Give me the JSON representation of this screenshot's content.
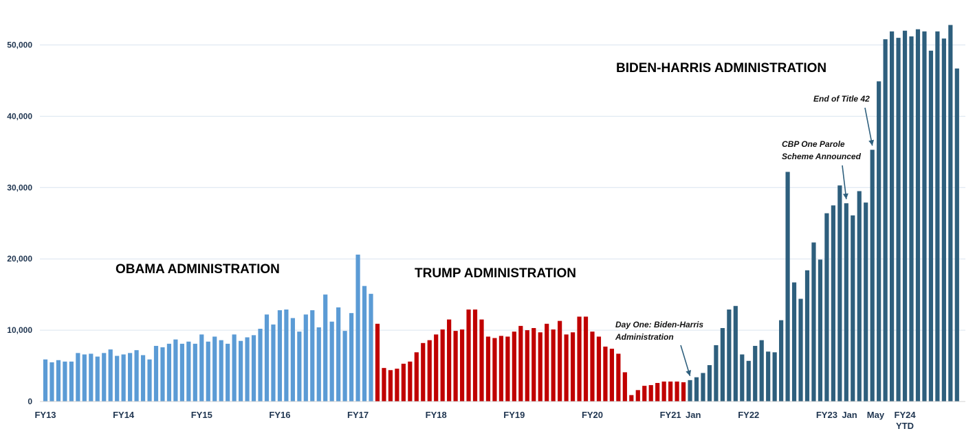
{
  "chart_data": {
    "type": "bar",
    "title": "",
    "xlabel": "",
    "ylabel": "",
    "ylim": [
      0,
      54000
    ],
    "grid": true,
    "colors": {
      "obama": "#5b9bd5",
      "trump": "#c00000",
      "biden": "#2e5f7d",
      "biden_title": "#1f3864",
      "grid": "#d9e4ef",
      "axis_text": "#1f3550"
    },
    "y_ticks": [
      {
        "value": 0,
        "label": "0"
      },
      {
        "value": 10000,
        "label": "10,000"
      },
      {
        "value": 20000,
        "label": "20,000"
      },
      {
        "value": 30000,
        "label": "30,000"
      },
      {
        "value": 40000,
        "label": "40,000"
      },
      {
        "value": 50000,
        "label": "50,000"
      }
    ],
    "x_ticks": [
      {
        "bar": 0,
        "label": "FY13"
      },
      {
        "bar": 12,
        "label": "FY14"
      },
      {
        "bar": 24,
        "label": "FY15"
      },
      {
        "bar": 36,
        "label": "FY16"
      },
      {
        "bar": 48,
        "label": "FY17"
      },
      {
        "bar": 60,
        "label": "FY18"
      },
      {
        "bar": 72,
        "label": "FY19"
      },
      {
        "bar": 84,
        "label": "FY20"
      },
      {
        "bar": 96,
        "label": "FY21"
      },
      {
        "bar": 99.5,
        "label": "Jan"
      },
      {
        "bar": 108,
        "label": "FY22"
      },
      {
        "bar": 120,
        "label": "FY23"
      },
      {
        "bar": 123.5,
        "label": "Jan"
      },
      {
        "bar": 127.5,
        "label": "May"
      },
      {
        "bar": 132,
        "label": "FY24"
      },
      {
        "bar": 132,
        "label": "YTD",
        "line": 2
      }
    ],
    "series": [
      {
        "name": "OBAMA ADMINISTRATION",
        "start": 0,
        "color": "#5b9bd5",
        "values": [
          5900,
          5500,
          5800,
          5600,
          5600,
          6800,
          6600,
          6700,
          6300,
          6800,
          7300,
          6400,
          6600,
          6800,
          7200,
          6500,
          5900,
          7800,
          7600,
          8100,
          8700,
          8100,
          8400,
          8100,
          9400,
          8400,
          9100,
          8600,
          8100,
          9400,
          8500,
          9000,
          9300,
          10200,
          12200,
          10800,
          12800,
          12900,
          11700,
          9800,
          12200,
          12800,
          10400,
          15000,
          11200,
          13200,
          9900,
          12400,
          20600,
          16200,
          15100
        ]
      },
      {
        "name": "TRUMP ADMINISTRATION",
        "start": 51,
        "color": "#c00000",
        "values": [
          10900,
          4700,
          4400,
          4600,
          5300,
          5600,
          6900,
          8200,
          8600,
          9400,
          10100,
          11500,
          9900,
          10100,
          12900,
          12900,
          11500,
          9100,
          8900,
          9200,
          9100,
          9800,
          10600,
          10000,
          10300,
          9700,
          10900,
          10100,
          11300,
          9400,
          9700,
          11900,
          11900,
          9800,
          9100,
          7700,
          7400,
          6700,
          4100,
          900,
          1600,
          2200,
          2300,
          2600,
          2800,
          2800,
          2800,
          2700
        ]
      },
      {
        "name": "BIDEN-HARRIS ADMINISTRATION",
        "start": 99,
        "color": "#2e5f7d",
        "values": [
          3000,
          3400,
          4000,
          5100,
          7900,
          10300,
          12900,
          13400,
          6600,
          5700,
          7800,
          8600,
          7000,
          6900,
          11400,
          32200,
          16700,
          14400,
          18400,
          22300,
          19900,
          26400,
          27500,
          30300,
          27800,
          26100,
          29500,
          27900,
          35300,
          44900,
          50800,
          51900,
          51000,
          52000,
          51200,
          52200,
          51900,
          49200,
          51900,
          50900,
          52800,
          46700
        ]
      }
    ],
    "admin_labels": [
      {
        "text": "OBAMA ADMINISTRATION",
        "color": "#5b9bd5"
      },
      {
        "text": "TRUMP ADMINISTRATION",
        "color": "#c00000"
      },
      {
        "text": "BIDEN-HARRIS ADMINISTRATION",
        "color": "#1f3864"
      }
    ],
    "annotations": [
      {
        "lines": [
          "Day One: Biden-Harris",
          "Administration"
        ],
        "target_bar": 99
      },
      {
        "lines": [
          "CBP One Parole",
          "Scheme Announced"
        ],
        "target_bar": 123
      },
      {
        "lines": [
          "End of Title 42"
        ],
        "target_bar": 127
      }
    ]
  }
}
